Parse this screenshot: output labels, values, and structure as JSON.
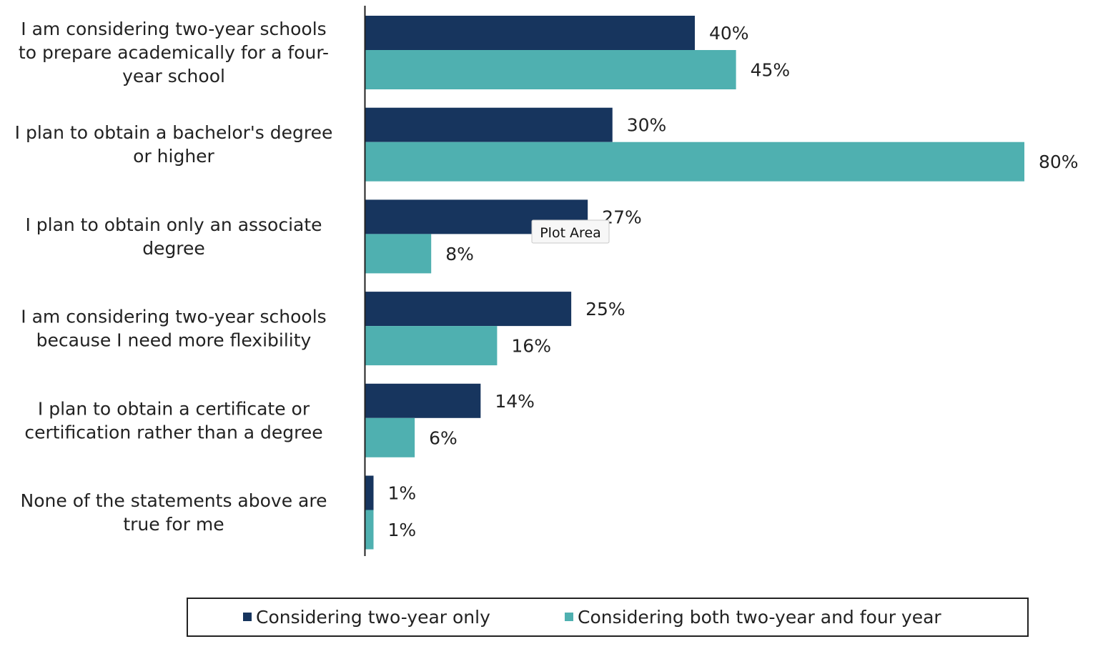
{
  "chart_data": {
    "type": "bar",
    "orientation": "horizontal",
    "categories": [
      [
        "I am considering two-year schools",
        "to prepare academically for a four-",
        "year school"
      ],
      [
        "I plan to obtain a bachelor's degree",
        "or higher"
      ],
      [
        "I plan to obtain only an associate",
        "degree"
      ],
      [
        "I am considering two-year schools",
        "because I need more flexibility"
      ],
      [
        "I plan to obtain a certificate or",
        "certification rather than a degree"
      ],
      [
        "None of the statements above are",
        "true for me"
      ]
    ],
    "series": [
      {
        "name": "Considering two-year only",
        "color": "#17355e",
        "values": [
          40,
          30,
          27,
          25,
          14,
          1
        ]
      },
      {
        "name": "Considering both two-year and four year",
        "color": "#4fb0b0",
        "values": [
          45,
          80,
          8,
          16,
          6,
          1
        ]
      }
    ],
    "value_format": "percent",
    "xlim": [
      0,
      80
    ],
    "grid": false,
    "legend": "bottom",
    "tooltip": "Plot Area"
  }
}
